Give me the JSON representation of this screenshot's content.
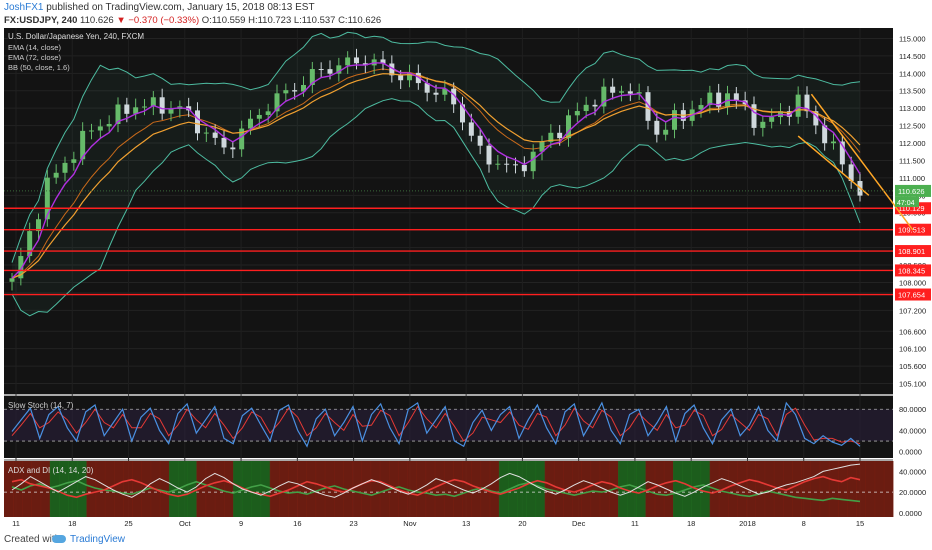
{
  "header": {
    "user": "JoshFX1",
    "published": "published on TradingView.com, January 15, 2018 08:13 EST",
    "symbol": "FX:USDJPY, 240",
    "last": "110.626",
    "arrow": "▼",
    "change": "−0.370 (−0.33%)",
    "ohlc": "O:110.559 H:110.723 L:110.537 C:110.626"
  },
  "footer": {
    "created": "Created with",
    "brand": "TradingView",
    "brand_icon": "tradingview-cloud-icon"
  },
  "colors": {
    "background": "#131313",
    "bull": "#66bb6a",
    "bear": "#cfd8dc",
    "ema_fast": "#b030e0",
    "ema_slow": "#f0a030",
    "bb": "#4dbba0",
    "support": "#ff1f1f",
    "trend": "#ffa726",
    "stoch_k": "#4a90e2",
    "stoch_d": "#e53935",
    "adx": "#e0e0e0",
    "di_plus": "#43a047",
    "di_minus": "#e53935"
  },
  "chart_data": [
    {
      "type": "candlestick",
      "title": "U.S. Dollar/Japanese Yen, 240, FXCM",
      "legend": [
        "EMA (14, close)",
        "EMA (72, close)",
        "BB (50, close, 1.6)"
      ],
      "legend_position": "top-left",
      "x_ticks": [
        "11",
        "18",
        "25",
        "Oct",
        "9",
        "16",
        "23",
        "Nov",
        "13",
        "20",
        "Dec",
        "11",
        "18",
        "2018",
        "8",
        "15"
      ],
      "y_ticks": [
        115.0,
        114.5,
        114.0,
        113.5,
        113.0,
        112.5,
        112.0,
        111.5,
        111.0,
        110.5,
        110.0,
        109.5,
        109.0,
        108.5,
        108.0,
        107.7,
        107.2,
        106.6,
        106.1,
        105.6,
        105.1
      ],
      "ylim": [
        104.8,
        115.3
      ],
      "current_price": 110.626,
      "current_price_label": "110.626",
      "countdown_label": "47:04",
      "support_levels": [
        {
          "value": 110.129,
          "label": "110.129"
        },
        {
          "value": 109.513,
          "label": "109.513"
        },
        {
          "value": 108.901,
          "label": "108.901"
        },
        {
          "value": 108.345,
          "label": "108.345"
        },
        {
          "value": 107.654,
          "label": "107.654"
        }
      ],
      "price_anchors": [
        {
          "x": 0,
          "y": 108.0
        },
        {
          "x": 4,
          "y": 110.8
        },
        {
          "x": 9,
          "y": 112.4
        },
        {
          "x": 14,
          "y": 113.1
        },
        {
          "x": 19,
          "y": 113.0
        },
        {
          "x": 24,
          "y": 111.8
        },
        {
          "x": 29,
          "y": 113.1
        },
        {
          "x": 35,
          "y": 114.1
        },
        {
          "x": 40,
          "y": 114.4
        },
        {
          "x": 46,
          "y": 113.7
        },
        {
          "x": 50,
          "y": 113.2
        },
        {
          "x": 53,
          "y": 111.7
        },
        {
          "x": 57,
          "y": 111.2
        },
        {
          "x": 61,
          "y": 112.2
        },
        {
          "x": 66,
          "y": 113.3
        },
        {
          "x": 70,
          "y": 113.6
        },
        {
          "x": 73,
          "y": 112.3
        },
        {
          "x": 77,
          "y": 113.0
        },
        {
          "x": 81,
          "y": 113.4
        },
        {
          "x": 85,
          "y": 112.5
        },
        {
          "x": 89,
          "y": 113.2
        },
        {
          "x": 92,
          "y": 112.2
        },
        {
          "x": 96,
          "y": 110.6
        }
      ],
      "trend_channel": [
        {
          "from": {
            "x": 90.5,
            "y": 113.4
          },
          "to": {
            "x": 102,
            "y": 109.5
          }
        },
        {
          "from": {
            "x": 89,
            "y": 112.2
          },
          "to": {
            "x": 97,
            "y": 110.5
          }
        }
      ]
    },
    {
      "type": "line",
      "title": "Slow Stoch (14, 7)",
      "y_ticks": [
        80.0,
        40.0,
        0.0
      ],
      "ylim": [
        -12,
        105
      ],
      "bands": [
        80,
        20
      ],
      "series": [
        {
          "values": [
            38,
            60,
            82,
            25,
            70,
            85,
            45,
            20,
            75,
            88,
            30,
            55,
            80,
            20,
            65,
            82,
            40,
            15,
            72,
            90,
            35,
            60,
            85,
            25,
            15,
            68,
            82,
            50,
            20,
            78,
            88,
            40,
            10,
            62,
            80,
            30,
            55,
            85,
            20,
            70,
            90,
            45,
            15,
            80,
            92,
            35,
            60,
            85,
            20,
            10,
            55,
            78,
            40,
            70,
            85,
            25,
            60,
            88,
            45,
            15,
            75,
            90,
            30,
            60,
            92,
            40,
            15,
            70,
            80,
            30,
            55,
            85,
            20,
            72,
            88,
            45,
            15,
            60,
            80,
            30,
            50,
            85,
            40,
            20,
            92,
            70,
            25,
            15,
            30,
            18,
            12,
            25,
            10
          ]
        },
        {
          "values": [
            30,
            50,
            72,
            45,
            55,
            75,
            60,
            35,
            55,
            80,
            55,
            45,
            70,
            45,
            45,
            72,
            62,
            30,
            50,
            80,
            60,
            45,
            72,
            50,
            25,
            45,
            75,
            65,
            35,
            55,
            82,
            65,
            30,
            45,
            72,
            55,
            40,
            70,
            48,
            50,
            78,
            68,
            30,
            55,
            85,
            62,
            45,
            72,
            48,
            20,
            35,
            65,
            60,
            55,
            75,
            50,
            42,
            72,
            65,
            30,
            50,
            82,
            58,
            45,
            78,
            65,
            30,
            45,
            72,
            55,
            40,
            70,
            45,
            50,
            78,
            68,
            30,
            42,
            70,
            55,
            40,
            70,
            62,
            30,
            70,
            82,
            50,
            22,
            25,
            25,
            18,
            20,
            15
          ]
        }
      ]
    },
    {
      "type": "line",
      "title": "ADX and DI (14, 14, 20)",
      "y_ticks": [
        40.0,
        20.0,
        0.0
      ],
      "ylim": [
        -4,
        50
      ],
      "threshold": 20,
      "regimes": [
        "red",
        "red",
        "red",
        "red",
        "red",
        "green",
        "green",
        "green",
        "green",
        "red",
        "red",
        "red",
        "red",
        "red",
        "red",
        "red",
        "red",
        "red",
        "green",
        "green",
        "green",
        "red",
        "red",
        "red",
        "red",
        "green",
        "green",
        "green",
        "green",
        "red",
        "red",
        "red",
        "red",
        "red",
        "red",
        "red",
        "red",
        "red",
        "red",
        "red",
        "red",
        "red",
        "red",
        "red",
        "red",
        "red",
        "red",
        "red",
        "red",
        "red",
        "red",
        "red",
        "red",
        "red",
        "green",
        "green",
        "green",
        "green",
        "green",
        "red",
        "red",
        "red",
        "red",
        "red",
        "red",
        "red",
        "red",
        "green",
        "green",
        "green",
        "red",
        "red",
        "red",
        "green",
        "green",
        "green",
        "green",
        "red",
        "red",
        "red",
        "red",
        "red",
        "red",
        "red",
        "red",
        "red",
        "red",
        "red",
        "red",
        "red",
        "red",
        "red",
        "red",
        "red",
        "red",
        "red",
        "red"
      ],
      "series": [
        {
          "values": [
            22,
            28,
            35,
            30,
            25,
            20,
            25,
            30,
            35,
            32,
            27,
            22,
            18,
            15,
            20,
            28,
            33,
            29,
            24,
            20,
            25,
            33,
            38,
            34,
            28,
            23,
            20,
            17,
            21,
            26,
            30,
            28,
            24,
            20,
            17,
            15,
            19,
            24,
            28,
            32,
            29,
            25,
            21,
            18,
            22,
            27,
            33,
            30,
            26,
            22,
            19,
            23,
            28,
            34,
            38,
            35,
            30,
            25,
            21,
            18,
            22,
            27,
            31,
            28,
            24,
            20,
            17,
            20,
            25,
            30,
            27,
            23,
            19,
            16,
            20,
            25,
            29,
            33,
            30,
            26,
            22,
            18,
            20,
            24,
            27,
            29,
            32,
            35,
            40,
            42,
            44,
            46,
            47
          ]
        },
        {
          "values": [
            30,
            32,
            28,
            26,
            24,
            21,
            17,
            15,
            18,
            20,
            22,
            26,
            30,
            32,
            29,
            25,
            21,
            18,
            16,
            18,
            22,
            26,
            29,
            31,
            28,
            24,
            20,
            18,
            16,
            19,
            22,
            26,
            30,
            28,
            25,
            22,
            20,
            24,
            28,
            31,
            30,
            26,
            22,
            19,
            17,
            21,
            25,
            29,
            32,
            30,
            26,
            23,
            20,
            18,
            21,
            24,
            28,
            31,
            29,
            25,
            22,
            20,
            23,
            27,
            30,
            28,
            24,
            21,
            19,
            22,
            26,
            29,
            31,
            28,
            24,
            21,
            19,
            22,
            26,
            29,
            32,
            30,
            27,
            24,
            22,
            26,
            30,
            33,
            35,
            32,
            30,
            34,
            32
          ]
        },
        {
          "values": [
            25,
            22,
            26,
            28,
            24,
            26,
            29,
            31,
            27,
            24,
            22,
            21,
            19,
            18,
            21,
            24,
            22,
            20,
            23,
            27,
            30,
            27,
            24,
            21,
            19,
            22,
            25,
            27,
            24,
            21,
            19,
            20,
            18,
            21,
            24,
            26,
            23,
            21,
            19,
            17,
            20,
            23,
            25,
            22,
            20,
            19,
            17,
            18,
            16,
            19,
            22,
            24,
            21,
            19,
            23,
            27,
            29,
            26,
            23,
            21,
            19,
            17,
            19,
            21,
            20,
            22,
            25,
            27,
            24,
            21,
            18,
            17,
            19,
            22,
            25,
            27,
            24,
            21,
            19,
            17,
            16,
            18,
            21,
            19,
            17,
            15,
            14,
            13,
            12,
            14,
            13,
            12,
            11
          ]
        }
      ]
    }
  ]
}
